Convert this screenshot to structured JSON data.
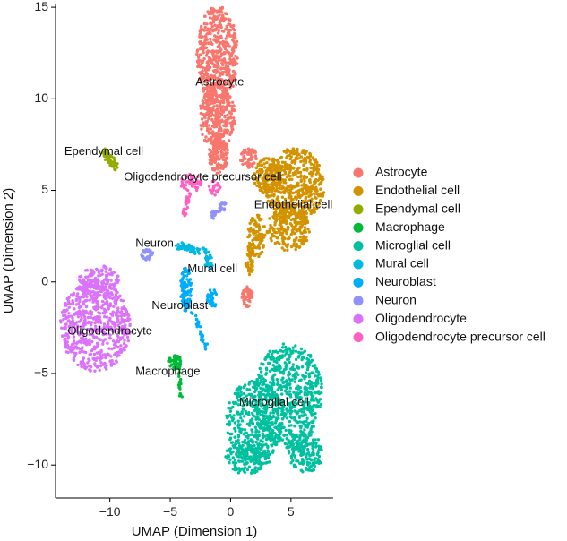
{
  "chart_data": {
    "type": "scatter",
    "xlabel": "UMAP (Dimension 1)",
    "ylabel": "UMAP (Dimension 2)",
    "xlim": [
      -14.5,
      8.5
    ],
    "ylim": [
      -11.8,
      15.2
    ],
    "xticks": [
      -10,
      -5,
      0,
      5
    ],
    "yticks": [
      -10,
      -5,
      0,
      5,
      10,
      15
    ],
    "grid": false,
    "legend_position": "right",
    "series": [
      {
        "name": "Astrocyte",
        "color": "#F8766D",
        "label": "Astrocyte",
        "label_at": [
          -0.9,
          10.9
        ],
        "regions": [
          {
            "shape": "ellipse",
            "center": [
              -1.1,
              12.4
            ],
            "radius": [
              1.7,
              2.7
            ],
            "n": 520
          },
          {
            "shape": "ellipse",
            "center": [
              -1.1,
              9.0
            ],
            "radius": [
              1.5,
              1.8
            ],
            "n": 320
          },
          {
            "shape": "ellipse",
            "center": [
              -1.0,
              6.9
            ],
            "radius": [
              0.8,
              1.0
            ],
            "n": 130
          },
          {
            "shape": "ellipse",
            "center": [
              1.5,
              6.8
            ],
            "radius": [
              0.7,
              0.6
            ],
            "n": 60
          },
          {
            "shape": "ellipse",
            "center": [
              1.4,
              -0.8
            ],
            "radius": [
              0.45,
              0.55
            ],
            "n": 50
          }
        ]
      },
      {
        "name": "Endothelial cell",
        "color": "#D39200",
        "label": "Endothelial cell",
        "label_at": [
          5.2,
          4.2
        ],
        "regions": [
          {
            "shape": "ellipse",
            "center": [
              5.3,
              5.3
            ],
            "radius": [
              2.5,
              2.0
            ],
            "n": 500
          },
          {
            "shape": "ellipse",
            "center": [
              3.1,
              5.8
            ],
            "radius": [
              1.2,
              1.0
            ],
            "n": 130
          },
          {
            "shape": "ellipse",
            "center": [
              4.8,
              2.9
            ],
            "radius": [
              1.8,
              1.2
            ],
            "n": 230
          },
          {
            "shape": "ellipse",
            "center": [
              2.1,
              2.5
            ],
            "radius": [
              0.8,
              1.2
            ],
            "n": 110
          },
          {
            "shape": "ellipse",
            "center": [
              1.6,
              1.0
            ],
            "radius": [
              0.35,
              0.6
            ],
            "n": 35
          }
        ]
      },
      {
        "name": "Ependymal cell",
        "color": "#93AA00",
        "label": "Ependymal cell",
        "label_at": [
          -10.5,
          7.1
        ],
        "regions": [
          {
            "shape": "line",
            "from": [
              -10.4,
              7.1
            ],
            "to": [
              -9.6,
              6.3
            ],
            "width": 0.25,
            "n": 50
          }
        ]
      },
      {
        "name": "Macrophage",
        "color": "#00BA38",
        "label": "Macrophage",
        "label_at": [
          -5.2,
          -4.9
        ],
        "regions": [
          {
            "shape": "ellipse",
            "center": [
              -4.6,
              -4.4
            ],
            "radius": [
              0.6,
              0.4
            ],
            "n": 40
          },
          {
            "shape": "line",
            "from": [
              -4.3,
              -4.6
            ],
            "to": [
              -4.1,
              -6.4
            ],
            "width": 0.12,
            "n": 22
          }
        ]
      },
      {
        "name": "Microglial cell",
        "color": "#00C19F",
        "label": "Microglial cell",
        "label_at": [
          3.6,
          -6.6
        ],
        "regions": [
          {
            "shape": "ellipse",
            "center": [
              4.8,
              -6.2
            ],
            "radius": [
              2.8,
              2.9
            ],
            "n": 620
          },
          {
            "shape": "ellipse",
            "center": [
              2.0,
              -7.6
            ],
            "radius": [
              2.4,
              2.2
            ],
            "n": 380
          },
          {
            "shape": "ellipse",
            "center": [
              1.4,
              -9.6
            ],
            "radius": [
              1.9,
              0.9
            ],
            "n": 170
          },
          {
            "shape": "ellipse",
            "center": [
              6.2,
              -9.3
            ],
            "radius": [
              1.5,
              1.1
            ],
            "n": 150
          }
        ]
      },
      {
        "name": "Mural cell",
        "color": "#00B9E3",
        "label": "Mural cell",
        "label_at": [
          -1.5,
          0.7
        ],
        "regions": [
          {
            "shape": "line",
            "from": [
              -4.4,
              2.0
            ],
            "to": [
              -2.0,
              1.6
            ],
            "width": 0.2,
            "n": 55
          },
          {
            "shape": "ellipse",
            "center": [
              -1.8,
              1.1
            ],
            "radius": [
              0.35,
              0.4
            ],
            "n": 25
          }
        ]
      },
      {
        "name": "Neuroblast",
        "color": "#00ADFA",
        "label": "Neuroblast",
        "label_at": [
          -4.2,
          -1.3
        ],
        "regions": [
          {
            "shape": "ellipse",
            "center": [
              -3.7,
              -0.3
            ],
            "radius": [
              0.45,
              1.3
            ],
            "n": 90
          },
          {
            "shape": "ellipse",
            "center": [
              -1.5,
              -0.9
            ],
            "radius": [
              0.45,
              0.5
            ],
            "n": 35
          },
          {
            "shape": "line",
            "from": [
              -3.2,
              -1.6
            ],
            "to": [
              -2.0,
              -3.6
            ],
            "width": 0.15,
            "n": 30
          }
        ]
      },
      {
        "name": "Neuron",
        "color": "#8F91FF",
        "label": "Neuron",
        "label_at": [
          -6.3,
          2.1
        ],
        "regions": [
          {
            "shape": "ellipse",
            "center": [
              -6.9,
              1.5
            ],
            "radius": [
              0.5,
              0.3
            ],
            "n": 35
          },
          {
            "shape": "line",
            "from": [
              -0.8,
              4.1
            ],
            "to": [
              -0.6,
              4.1
            ],
            "width": 0.3,
            "n": 15
          },
          {
            "shape": "line",
            "from": [
              -1.5,
              3.6
            ],
            "to": [
              -0.9,
              4.0
            ],
            "width": 0.2,
            "n": 20
          }
        ]
      },
      {
        "name": "Oligodendrocyte",
        "color": "#DB72FB",
        "label": "Oligodendrocyte",
        "label_at": [
          -10.0,
          -2.7
        ],
        "regions": [
          {
            "shape": "ellipse",
            "center": [
              -11.2,
              -2.4
            ],
            "radius": [
              2.9,
              2.5
            ],
            "n": 620
          },
          {
            "shape": "ellipse",
            "center": [
              -10.9,
              0.0
            ],
            "radius": [
              1.7,
              0.9
            ],
            "n": 150
          }
        ]
      },
      {
        "name": "Oligodendrocyte precursor cell",
        "color": "#FF61C3",
        "label": "Oligodendrocyte precursor cell",
        "label_at": [
          -2.3,
          5.7
        ],
        "regions": [
          {
            "shape": "ellipse",
            "center": [
              -3.3,
              5.4
            ],
            "radius": [
              0.9,
              0.5
            ],
            "n": 50
          },
          {
            "shape": "line",
            "from": [
              -3.4,
              5.0
            ],
            "to": [
              -3.9,
              3.6
            ],
            "width": 0.18,
            "n": 25
          },
          {
            "shape": "ellipse",
            "center": [
              -1.3,
              5.1
            ],
            "radius": [
              0.5,
              0.45
            ],
            "n": 25
          }
        ]
      }
    ]
  }
}
